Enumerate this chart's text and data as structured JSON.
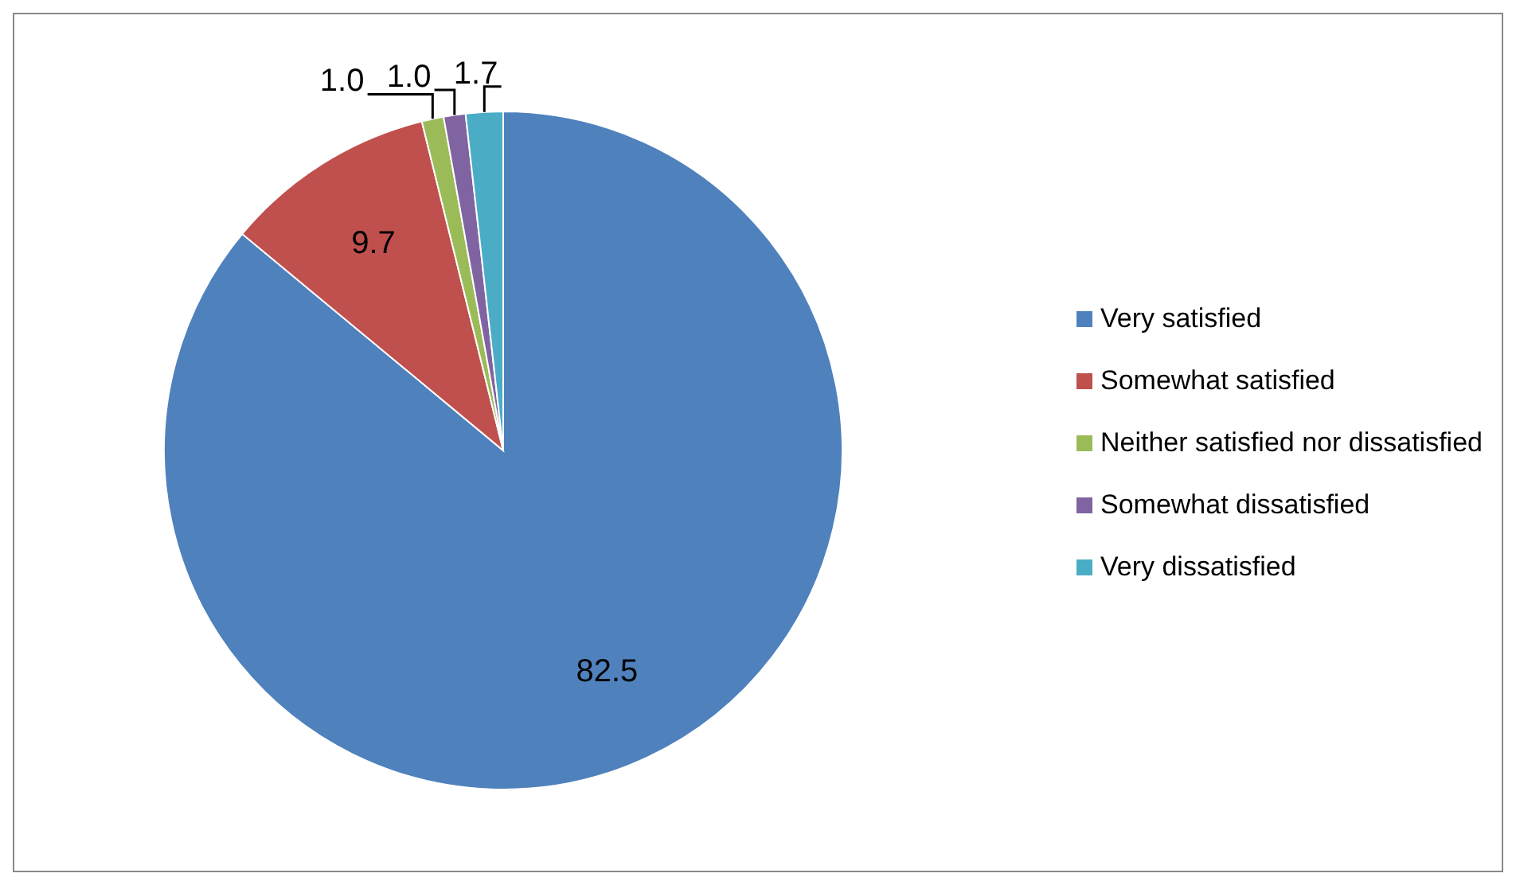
{
  "chart_data": {
    "type": "pie",
    "categories": [
      "Very satisfied",
      "Somewhat satisfied",
      "Neither satisfied nor dissatisfied",
      "Somewhat dissatisfied",
      "Very dissatisfied"
    ],
    "values": [
      82.5,
      9.7,
      1.0,
      1.0,
      1.7
    ],
    "value_labels": [
      "82.5",
      "9.7",
      "1.0",
      "1.0",
      "1.7"
    ],
    "colors": [
      "#4f81bd",
      "#c0504d",
      "#9bbb59",
      "#8064a2",
      "#4bacc6"
    ],
    "legend": "right"
  }
}
